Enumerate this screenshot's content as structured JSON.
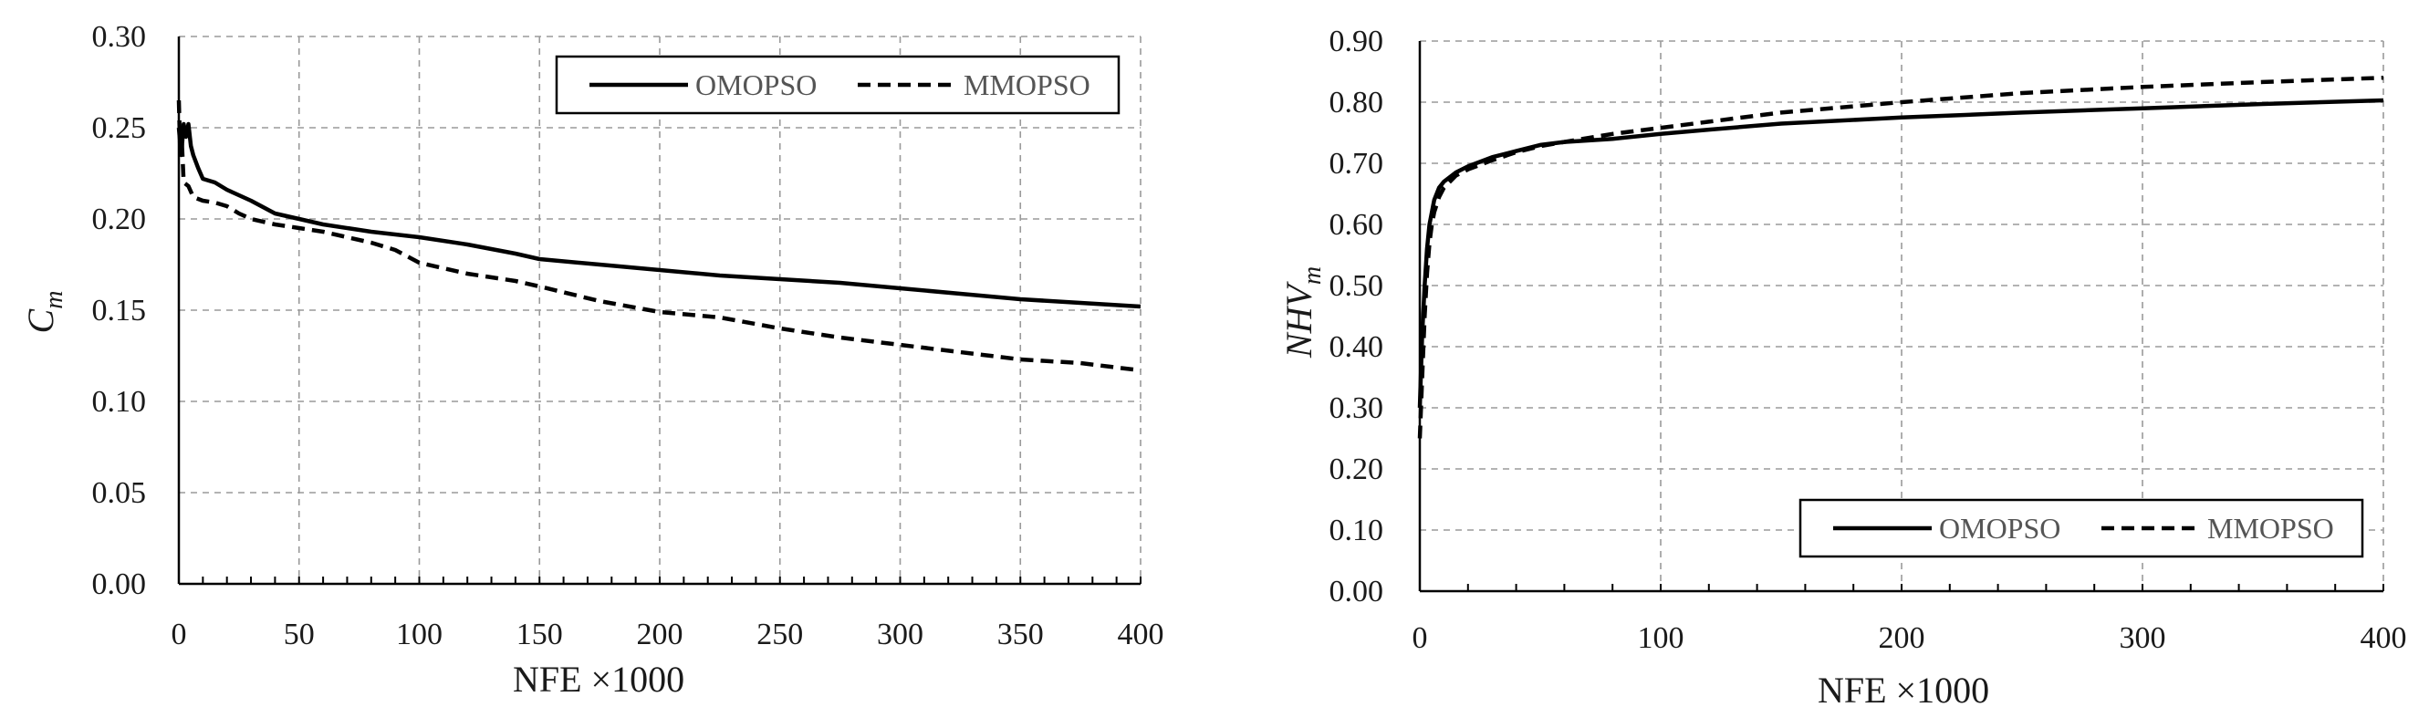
{
  "chart_data": [
    {
      "type": "line",
      "xlabel": "NFE ×1000",
      "ylabel_main": "C",
      "ylabel_sub": "m",
      "xlim": [
        0,
        400
      ],
      "ylim": [
        0,
        0.3
      ],
      "xticks": [
        0,
        50,
        100,
        150,
        200,
        250,
        300,
        350,
        400
      ],
      "xtick_labels": [
        "0",
        "50",
        "100",
        "150",
        "200",
        "250",
        "300",
        "350",
        "400"
      ],
      "yticks": [
        0,
        0.05,
        0.1,
        0.15,
        0.2,
        0.25,
        0.3
      ],
      "ytick_labels": [
        "0.00",
        "0.05",
        "0.10",
        "0.15",
        "0.20",
        "0.25",
        "0.30"
      ],
      "grid": true,
      "legend_position": "top-right",
      "series": [
        {
          "name": "OMOPSO",
          "style": "solid",
          "x": [
            0,
            1,
            2,
            3,
            4,
            5,
            6,
            8,
            10,
            15,
            20,
            30,
            40,
            50,
            60,
            80,
            100,
            120,
            140,
            150,
            175,
            200,
            225,
            250,
            275,
            300,
            325,
            350,
            375,
            400
          ],
          "y": [
            0.25,
            0.235,
            0.252,
            0.245,
            0.252,
            0.24,
            0.235,
            0.228,
            0.222,
            0.22,
            0.216,
            0.21,
            0.203,
            0.2,
            0.197,
            0.193,
            0.19,
            0.186,
            0.181,
            0.178,
            0.175,
            0.172,
            0.169,
            0.167,
            0.165,
            0.162,
            0.159,
            0.156,
            0.154,
            0.152
          ]
        },
        {
          "name": "MMOPSO",
          "style": "dashed",
          "x": [
            0,
            0.5,
            1,
            2,
            4,
            6,
            10,
            15,
            20,
            25,
            30,
            40,
            50,
            60,
            70,
            80,
            90,
            100,
            120,
            140,
            150,
            175,
            200,
            225,
            250,
            275,
            300,
            325,
            350,
            375,
            400
          ],
          "y": [
            0.265,
            0.24,
            0.25,
            0.22,
            0.218,
            0.212,
            0.21,
            0.209,
            0.207,
            0.203,
            0.2,
            0.197,
            0.195,
            0.193,
            0.19,
            0.187,
            0.183,
            0.176,
            0.17,
            0.166,
            0.163,
            0.155,
            0.149,
            0.146,
            0.14,
            0.135,
            0.131,
            0.127,
            0.123,
            0.121,
            0.117
          ]
        }
      ]
    },
    {
      "type": "line",
      "xlabel": "NFE ×1000",
      "ylabel_main": "NHV",
      "ylabel_sub": "m",
      "xlim": [
        0,
        400
      ],
      "ylim": [
        0,
        0.9
      ],
      "xticks": [
        0,
        100,
        200,
        300,
        400
      ],
      "xtick_labels": [
        "0",
        "100",
        "200",
        "300",
        "400"
      ],
      "yticks": [
        0,
        0.1,
        0.2,
        0.3,
        0.4,
        0.5,
        0.6,
        0.7,
        0.8,
        0.9
      ],
      "ytick_labels": [
        "0.00",
        "0.10",
        "0.20",
        "0.30",
        "0.40",
        "0.50",
        "0.60",
        "0.70",
        "0.80",
        "0.90"
      ],
      "grid": true,
      "legend_position": "bottom-right",
      "series": [
        {
          "name": "OMOPSO",
          "style": "solid",
          "x": [
            0,
            1,
            2,
            3,
            4,
            5,
            6,
            8,
            10,
            15,
            20,
            30,
            40,
            50,
            60,
            80,
            100,
            120,
            150,
            200,
            250,
            300,
            350,
            400
          ],
          "y": [
            0.3,
            0.42,
            0.5,
            0.56,
            0.6,
            0.62,
            0.64,
            0.66,
            0.67,
            0.685,
            0.695,
            0.71,
            0.72,
            0.73,
            0.735,
            0.74,
            0.748,
            0.755,
            0.765,
            0.775,
            0.783,
            0.79,
            0.797,
            0.803
          ]
        },
        {
          "name": "MMOPSO",
          "style": "dashed",
          "x": [
            0,
            1,
            2,
            3,
            4,
            5,
            6,
            8,
            10,
            15,
            20,
            30,
            40,
            50,
            60,
            80,
            100,
            120,
            150,
            200,
            250,
            300,
            350,
            400
          ],
          "y": [
            0.25,
            0.35,
            0.45,
            0.52,
            0.57,
            0.6,
            0.62,
            0.645,
            0.66,
            0.68,
            0.69,
            0.705,
            0.718,
            0.728,
            0.735,
            0.748,
            0.758,
            0.768,
            0.783,
            0.8,
            0.815,
            0.825,
            0.833,
            0.84
          ]
        }
      ]
    }
  ]
}
